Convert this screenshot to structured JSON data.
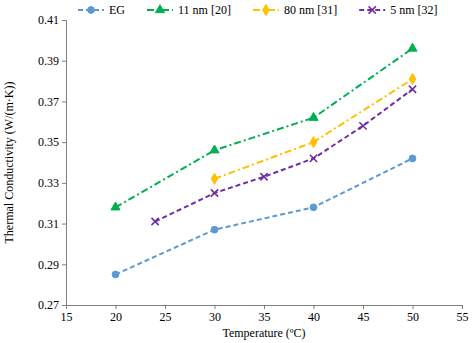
{
  "chart_data": {
    "type": "line",
    "x_label": "Temperature (ºC)",
    "y_label": "Thermal Conductivity (W/(m·K))",
    "xlim": [
      15,
      55
    ],
    "xticks": [
      15,
      20,
      25,
      30,
      35,
      40,
      45,
      50,
      55
    ],
    "ylim": [
      0.27,
      0.41
    ],
    "yticks": [
      0.27,
      0.29,
      0.31,
      0.33,
      0.35,
      0.37,
      0.39,
      0.41
    ],
    "grid": false,
    "legend": "top",
    "series": [
      {
        "name": "EG",
        "color": "#5b9bd5",
        "marker": "circle",
        "line_style": "dashed",
        "x": [
          20,
          30,
          40,
          50
        ],
        "values": [
          0.285,
          0.307,
          0.318,
          0.342
        ]
      },
      {
        "name": "11 nm [20]",
        "color": "#00b050",
        "marker": "triangle",
        "line_style": "dashdot",
        "x": [
          20,
          30,
          40,
          50
        ],
        "values": [
          0.318,
          0.346,
          0.362,
          0.396
        ]
      },
      {
        "name": "80 nm [31]",
        "color": "#ffc000",
        "marker": "diamond",
        "line_style": "dashdot",
        "x": [
          30,
          40,
          50
        ],
        "values": [
          0.332,
          0.35,
          0.381
        ]
      },
      {
        "name": "5 nm [32]",
        "color": "#7030a0",
        "marker": "x",
        "line_style": "dashed",
        "x": [
          24,
          30,
          35,
          40,
          45,
          50
        ],
        "values": [
          0.311,
          0.325,
          0.333,
          0.342,
          0.358,
          0.376
        ]
      }
    ]
  }
}
